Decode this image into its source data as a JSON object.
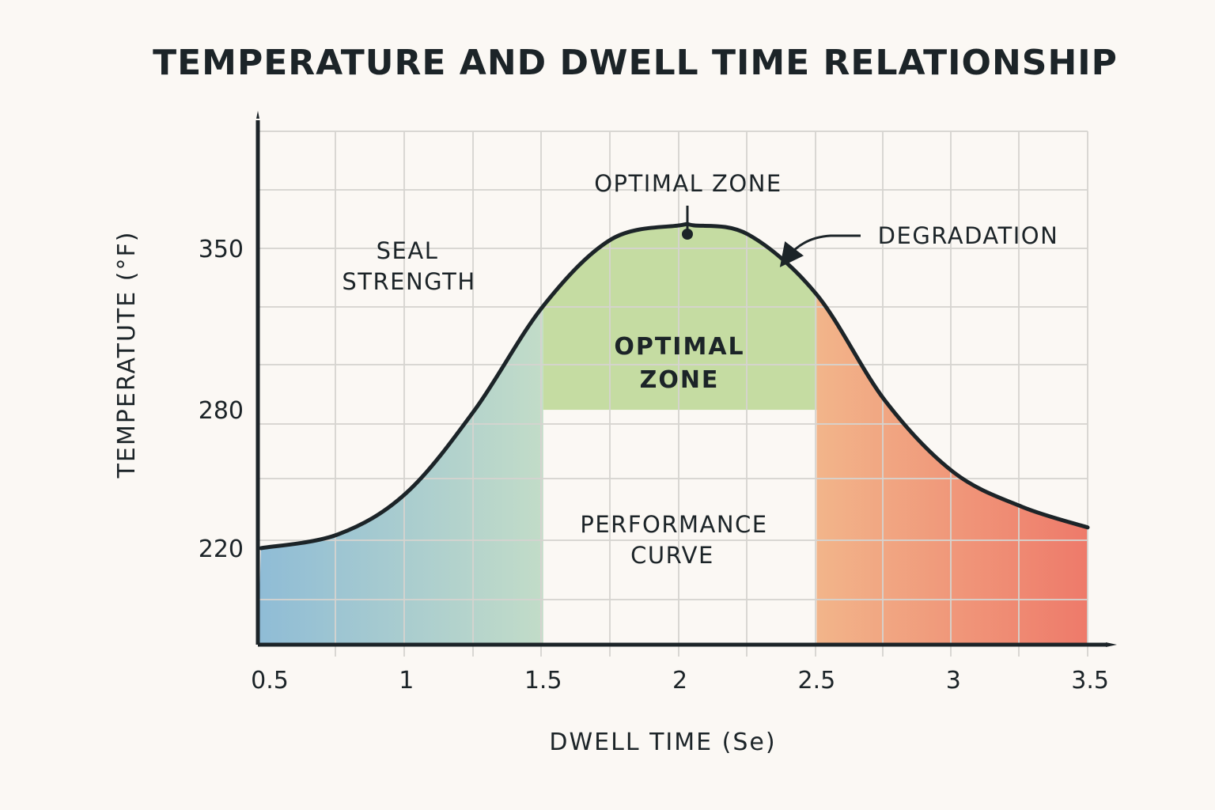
{
  "chart_data": {
    "type": "area",
    "title": "TEMPERATURE AND DWELL TIME RELATIONSHIP",
    "xlabel": "DWELL TIME (Se)",
    "ylabel": "TEMPERATUTE (°F)",
    "x_ticks": [
      "0.5",
      "1",
      "1.5",
      "2",
      "2.5",
      "3",
      "3.5"
    ],
    "x_tick_values": [
      0.5,
      1,
      1.5,
      2,
      2.5,
      3,
      3.5
    ],
    "y_ticks": [
      "350",
      "280",
      "220"
    ],
    "y_tick_values": [
      350,
      280,
      220
    ],
    "xlim": [
      0.5,
      3.5
    ],
    "ylim": [
      175,
      460
    ],
    "grid": true,
    "series": [
      {
        "name": "Performance curve",
        "x": [
          0.5,
          0.75,
          1.0,
          1.25,
          1.5,
          1.75,
          2.0,
          2.05,
          2.25,
          2.5,
          2.75,
          3.0,
          3.25,
          3.5
        ],
        "y": [
          220,
          226,
          244,
          280,
          325,
          354,
          360,
          360,
          356,
          330,
          284,
          253,
          238,
          229
        ]
      }
    ],
    "regions": [
      {
        "name": "Seal strength",
        "x_range": [
          0.5,
          1.5
        ],
        "fill": "gradient",
        "colors": [
          "#8fbcd6",
          "#c2dcc8"
        ]
      },
      {
        "name": "Optimal zone",
        "x_range": [
          1.5,
          2.5
        ],
        "y_floor": 280,
        "color": "#c5dca2"
      },
      {
        "name": "Degradation",
        "x_range": [
          2.5,
          3.5
        ],
        "fill": "gradient",
        "colors": [
          "#f2b58a",
          "#ee7a6a"
        ]
      }
    ],
    "peak_point": {
      "x": 2.05,
      "y": 360
    },
    "annotations": {
      "optimal_zone_top": "OPTIMAL ZONE",
      "degradation": "DEGRADATION",
      "seal_strength_line1": "SEAL",
      "seal_strength_line2": "STRENGTH",
      "optimal_zone_inner_line1": "OPTIMAL",
      "optimal_zone_inner_line2": "ZONE",
      "performance_curve_line1": "PERFORMANCE",
      "performance_curve_line2": "CURVE"
    },
    "legend": "none"
  },
  "colors": {
    "background": "#fbf8f4",
    "grid": "#d6d4d0",
    "ink": "#1c2428",
    "seal_blue": "#8fbcd6",
    "seal_mint": "#c2dcc8",
    "optimal_green": "#c5dca2",
    "degrade_orange": "#f2b58a",
    "degrade_red": "#ee7a6a"
  }
}
